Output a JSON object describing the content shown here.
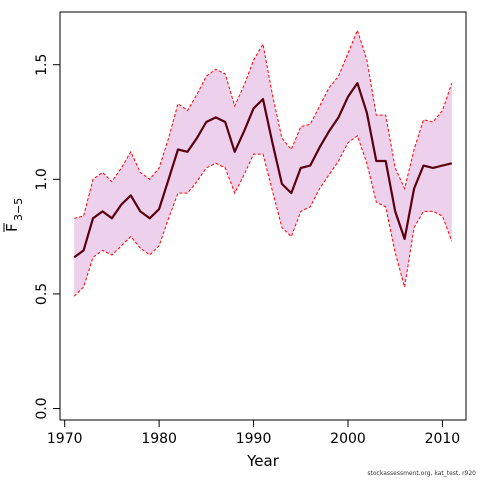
{
  "chart_data": {
    "type": "line",
    "xlabel": "Year",
    "ylabel_main": "F",
    "ylabel_sub": "3−5",
    "xlim": [
      1969.5,
      2012.5
    ],
    "ylim": [
      -0.05,
      1.73
    ],
    "xticks": [
      1970,
      1980,
      1990,
      2000,
      2010
    ],
    "yticks": [
      0.0,
      0.5,
      1.0,
      1.5
    ],
    "ytick_labels": [
      "0.0",
      "0.5",
      "1.0",
      "1.5"
    ],
    "grid": false,
    "x": [
      1971,
      1972,
      1973,
      1974,
      1975,
      1976,
      1977,
      1978,
      1979,
      1980,
      1981,
      1982,
      1983,
      1984,
      1985,
      1986,
      1987,
      1988,
      1989,
      1990,
      1991,
      1992,
      1993,
      1994,
      1995,
      1996,
      1997,
      1998,
      1999,
      2000,
      2001,
      2002,
      2003,
      2004,
      2005,
      2006,
      2007,
      2008,
      2009,
      2010,
      2011
    ],
    "series": [
      {
        "role": "estimate",
        "values": [
          0.66,
          0.69,
          0.83,
          0.86,
          0.83,
          0.89,
          0.93,
          0.86,
          0.83,
          0.87,
          1.0,
          1.13,
          1.12,
          1.18,
          1.25,
          1.27,
          1.25,
          1.12,
          1.21,
          1.31,
          1.35,
          1.16,
          0.98,
          0.94,
          1.05,
          1.06,
          1.14,
          1.21,
          1.27,
          1.36,
          1.42,
          1.29,
          1.08,
          1.08,
          0.86,
          0.74,
          0.96,
          1.06,
          1.05,
          1.06,
          1.07
        ]
      },
      {
        "role": "upper",
        "values": [
          0.83,
          0.84,
          1.0,
          1.03,
          0.99,
          1.05,
          1.12,
          1.03,
          1.0,
          1.05,
          1.18,
          1.33,
          1.3,
          1.37,
          1.45,
          1.48,
          1.46,
          1.32,
          1.41,
          1.52,
          1.59,
          1.37,
          1.18,
          1.13,
          1.23,
          1.24,
          1.32,
          1.4,
          1.45,
          1.55,
          1.65,
          1.52,
          1.28,
          1.28,
          1.05,
          0.96,
          1.13,
          1.26,
          1.25,
          1.3,
          1.42
        ]
      },
      {
        "role": "lower",
        "values": [
          0.49,
          0.53,
          0.66,
          0.69,
          0.67,
          0.71,
          0.75,
          0.7,
          0.67,
          0.71,
          0.83,
          0.94,
          0.94,
          0.99,
          1.05,
          1.07,
          1.05,
          0.94,
          1.02,
          1.11,
          1.11,
          0.95,
          0.79,
          0.75,
          0.86,
          0.88,
          0.96,
          1.02,
          1.08,
          1.16,
          1.19,
          1.07,
          0.9,
          0.88,
          0.68,
          0.53,
          0.79,
          0.86,
          0.86,
          0.84,
          0.73
        ]
      }
    ],
    "colors": {
      "estimate": "#5a0010",
      "band_fill": "#edd0ec",
      "band_edge": "#ff0000"
    }
  },
  "credit": "stockassessment.org, kat_test, r920"
}
